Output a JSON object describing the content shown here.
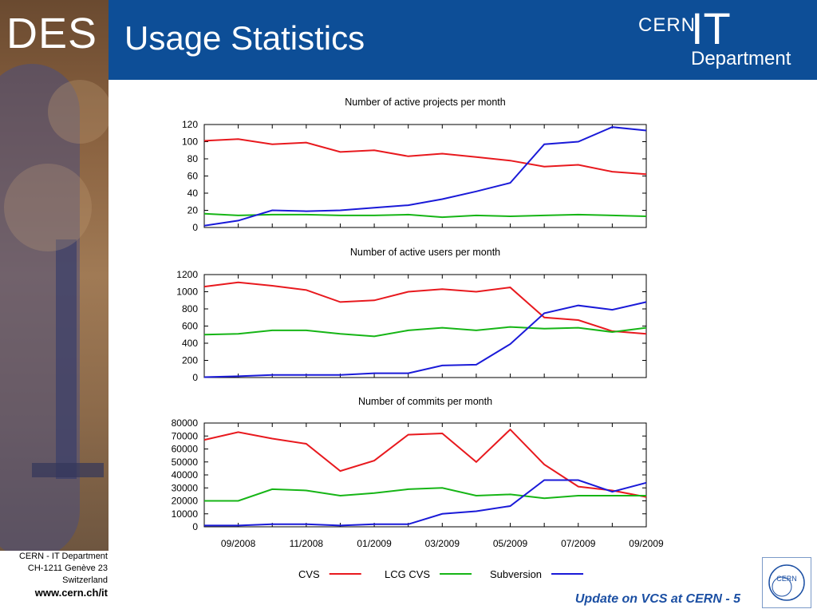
{
  "header": {
    "logo_text": "DES",
    "title": "Usage Statistics",
    "org_logo": {
      "cern": "CERN",
      "it": "IT",
      "department": "Department"
    }
  },
  "footer": {
    "address_lines": [
      "CERN - IT Department",
      "CH-1211 Genève 23",
      "Switzerland"
    ],
    "website": "www.cern.ch/it",
    "slide_caption": "Update on VCS at CERN - 5",
    "badge_logo_text": "CERN"
  },
  "colors": {
    "header_blue": "#0d4e97",
    "cvs": "#e8191e",
    "lcg_cvs": "#16b516",
    "subversion": "#1a1ad8",
    "caption_blue": "#1b4fa3"
  },
  "legend": [
    {
      "name": "CVS",
      "color": "#e8191e"
    },
    {
      "name": "LCG CVS",
      "color": "#16b516"
    },
    {
      "name": "Subversion",
      "color": "#1a1ad8"
    }
  ],
  "x_tick_labels": [
    "09/2008",
    "11/2008",
    "01/2009",
    "03/2009",
    "05/2009",
    "07/2009",
    "09/2009"
  ],
  "chart_data": [
    {
      "type": "line",
      "title": "Number of active projects per month",
      "x": [
        "08/2008",
        "09/2008",
        "10/2008",
        "11/2008",
        "12/2008",
        "01/2009",
        "02/2009",
        "03/2009",
        "04/2009",
        "05/2009",
        "06/2009",
        "07/2009",
        "08/2009",
        "09/2009"
      ],
      "ylim": [
        0,
        120
      ],
      "yticks": [
        0,
        20,
        40,
        60,
        80,
        100,
        120
      ],
      "series": [
        {
          "name": "CVS",
          "values": [
            101,
            103,
            97,
            99,
            88,
            90,
            83,
            86,
            82,
            78,
            71,
            73,
            65,
            62
          ]
        },
        {
          "name": "LCG CVS",
          "values": [
            16,
            14,
            15,
            15,
            14,
            14,
            15,
            12,
            14,
            13,
            14,
            15,
            14,
            13
          ]
        },
        {
          "name": "Subversion",
          "values": [
            2,
            8,
            20,
            19,
            20,
            23,
            26,
            33,
            42,
            52,
            97,
            100,
            117,
            113
          ]
        }
      ]
    },
    {
      "type": "line",
      "title": "Number of active users per month",
      "x": [
        "08/2008",
        "09/2008",
        "10/2008",
        "11/2008",
        "12/2008",
        "01/2009",
        "02/2009",
        "03/2009",
        "04/2009",
        "05/2009",
        "06/2009",
        "07/2009",
        "08/2009",
        "09/2009"
      ],
      "ylim": [
        0,
        1200
      ],
      "yticks": [
        0,
        200,
        400,
        600,
        800,
        1000,
        1200
      ],
      "series": [
        {
          "name": "CVS",
          "values": [
            1060,
            1110,
            1070,
            1020,
            880,
            900,
            1000,
            1030,
            1000,
            1050,
            700,
            670,
            540,
            510
          ]
        },
        {
          "name": "LCG CVS",
          "values": [
            500,
            510,
            550,
            550,
            510,
            480,
            550,
            580,
            550,
            590,
            570,
            580,
            530,
            580
          ]
        },
        {
          "name": "Subversion",
          "values": [
            5,
            15,
            30,
            30,
            30,
            50,
            50,
            140,
            150,
            390,
            750,
            840,
            790,
            880
          ]
        }
      ]
    },
    {
      "type": "line",
      "title": "Number of commits per month",
      "x": [
        "08/2008",
        "09/2008",
        "10/2008",
        "11/2008",
        "12/2008",
        "01/2009",
        "02/2009",
        "03/2009",
        "04/2009",
        "05/2009",
        "06/2009",
        "07/2009",
        "08/2009",
        "09/2009"
      ],
      "ylim": [
        0,
        80000
      ],
      "yticks": [
        0,
        10000,
        20000,
        30000,
        40000,
        50000,
        60000,
        70000,
        80000
      ],
      "series": [
        {
          "name": "CVS",
          "values": [
            67000,
            73000,
            68000,
            64000,
            43000,
            51000,
            71000,
            72000,
            50000,
            75000,
            48000,
            31000,
            28000,
            23000
          ]
        },
        {
          "name": "LCG CVS",
          "values": [
            20000,
            20000,
            29000,
            28000,
            24000,
            26000,
            29000,
            30000,
            24000,
            25000,
            22000,
            24000,
            24000,
            24000
          ]
        },
        {
          "name": "Subversion",
          "values": [
            1000,
            1000,
            2000,
            2000,
            1000,
            2000,
            2000,
            10000,
            12000,
            16000,
            36000,
            36000,
            27000,
            34000
          ]
        }
      ]
    }
  ]
}
